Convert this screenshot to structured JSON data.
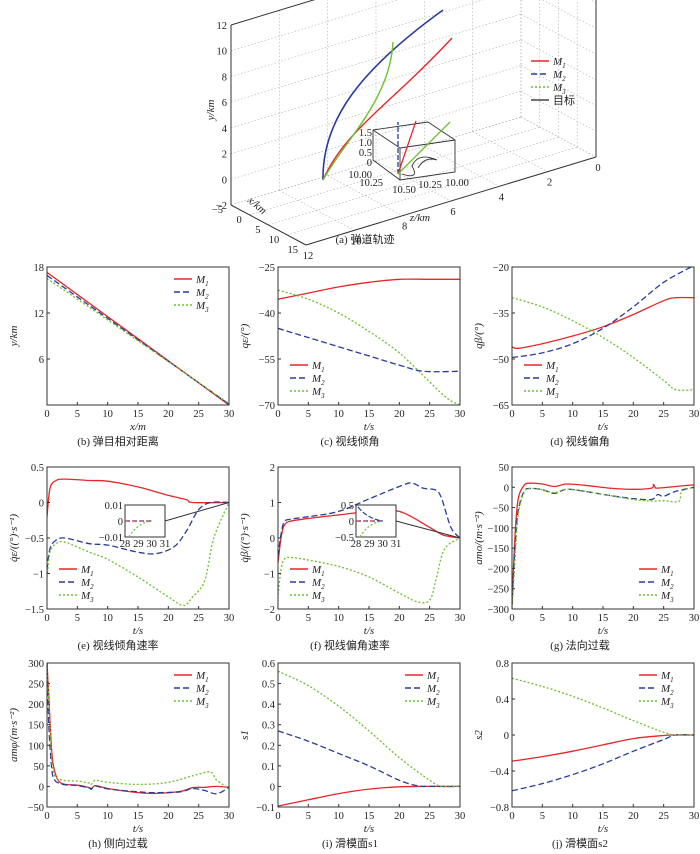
{
  "colors": {
    "M1": "#e8262a",
    "M2": "#2a3c9a",
    "M3": "#6cc02e",
    "target": "#222222"
  },
  "series_names": [
    "M1",
    "M2",
    "M3"
  ],
  "chart_data": [
    {
      "id": "a",
      "type": "line3d",
      "caption": "(a) 弹道轨迹",
      "xlabel": "x/km",
      "ylabel": "y/km",
      "zlabel": "z/km",
      "xticks": [
        "-5",
        "0",
        "5",
        "10",
        "15"
      ],
      "yticks": [
        "-2",
        "0",
        "2",
        "4",
        "6",
        "8",
        "10",
        "12"
      ],
      "zticks": [
        "12",
        "10",
        "8",
        "6",
        "4",
        "2",
        "0"
      ],
      "legend": [
        "M1",
        "M2",
        "M3",
        "目标"
      ],
      "inset": {
        "yticks": [
          "0",
          "0.5",
          "1.0",
          "1.5"
        ],
        "xticks": [
          "10.00",
          "10.25",
          "10.50"
        ],
        "zticks": [
          "10.25",
          "10.00"
        ]
      }
    },
    {
      "id": "b",
      "type": "line",
      "caption": "(b) 弹目相对距离",
      "xlabel": "x/m",
      "ylabel": "y/km",
      "xlim": [
        0,
        30
      ],
      "ylim": [
        0,
        18
      ],
      "xticks": [
        0,
        5,
        10,
        15,
        20,
        25,
        30
      ],
      "yticks": [
        6,
        12,
        18
      ],
      "legend": "top-right",
      "series": [
        {
          "name": "M1",
          "x": [
            0,
            30
          ],
          "y": [
            17.3,
            0
          ]
        },
        {
          "name": "M2",
          "x": [
            0,
            10,
            30
          ],
          "y": [
            16.9,
            11.3,
            0.1
          ]
        },
        {
          "name": "M3",
          "x": [
            0,
            10,
            30
          ],
          "y": [
            16.5,
            11.1,
            0.2
          ]
        }
      ]
    },
    {
      "id": "c",
      "type": "line",
      "caption": "(c) 视线倾角",
      "xlabel": "t/s",
      "ylabel": "qε/(°)",
      "xlim": [
        0,
        30
      ],
      "ylim": [
        -70,
        -25
      ],
      "xticks": [
        0,
        5,
        10,
        15,
        20,
        25,
        30
      ],
      "yticks": [
        -70,
        -55,
        -40,
        -25
      ],
      "legend": "bottom-left",
      "series": [
        {
          "name": "M1",
          "x": [
            0,
            5,
            10,
            15,
            20,
            25,
            30
          ],
          "y": [
            -35.5,
            -33.5,
            -31.5,
            -30,
            -29,
            -29,
            -29
          ]
        },
        {
          "name": "M2",
          "x": [
            0,
            5,
            10,
            15,
            20,
            24,
            30
          ],
          "y": [
            -45,
            -48,
            -51,
            -54,
            -57,
            -59,
            -59
          ]
        },
        {
          "name": "M3",
          "x": [
            0,
            5,
            10,
            15,
            20,
            25,
            28,
            30
          ],
          "y": [
            -32.5,
            -35.5,
            -40,
            -46,
            -53,
            -62.5,
            -68,
            -70
          ]
        }
      ]
    },
    {
      "id": "d",
      "type": "line",
      "caption": "(d) 视线偏角",
      "xlabel": "t/s",
      "ylabel": "qβ/(°)",
      "xlim": [
        0,
        30
      ],
      "ylim": [
        -65,
        -20
      ],
      "xticks": [
        0,
        5,
        10,
        15,
        20,
        25,
        30
      ],
      "yticks": [
        -65,
        -50,
        -35,
        -20
      ],
      "legend": "bottom-left",
      "series": [
        {
          "name": "M1",
          "x": [
            0,
            1,
            5,
            10,
            15,
            20,
            25,
            27,
            30
          ],
          "y": [
            -46,
            -46.5,
            -45,
            -42.5,
            -39.5,
            -35.5,
            -31,
            -30,
            -30
          ]
        },
        {
          "name": "M2",
          "x": [
            0,
            5,
            10,
            15,
            20,
            25,
            30
          ],
          "y": [
            -49.5,
            -48,
            -45,
            -40,
            -33,
            -25,
            -19.5
          ]
        },
        {
          "name": "M3",
          "x": [
            0,
            5,
            10,
            15,
            20,
            25,
            27,
            30
          ],
          "y": [
            -30,
            -33,
            -37.5,
            -43,
            -49.5,
            -57,
            -60,
            -60
          ]
        }
      ]
    },
    {
      "id": "e",
      "type": "line",
      "caption": "(e) 视线倾角速率",
      "xlabel": "t/s",
      "ylabel": "q̇ε/((°)·s⁻¹)",
      "xlim": [
        0,
        30
      ],
      "ylim": [
        -1.5,
        0.5
      ],
      "xticks": [
        0,
        5,
        10,
        15,
        20,
        25,
        30
      ],
      "yticks": [
        -1.5,
        -1.0,
        -0.5,
        0,
        0.5
      ],
      "legend": "bottom-left",
      "inset": {
        "xticks": [
          28,
          29,
          30,
          31
        ],
        "yticks": [
          -0.01,
          0,
          0.01
        ]
      },
      "series": [
        {
          "name": "M1",
          "x": [
            0,
            0.5,
            1.5,
            3,
            7,
            10,
            15,
            20,
            23,
            24,
            30
          ],
          "y": [
            -0.2,
            0.2,
            0.31,
            0.33,
            0.31,
            0.3,
            0.22,
            0.1,
            0.04,
            0,
            0
          ]
        },
        {
          "name": "M2",
          "x": [
            0,
            0.5,
            1.5,
            3,
            7,
            10,
            15,
            18,
            21,
            23,
            25,
            27,
            30
          ],
          "y": [
            -0.95,
            -0.65,
            -0.53,
            -0.5,
            -0.58,
            -0.6,
            -0.7,
            -0.72,
            -0.62,
            -0.4,
            -0.1,
            0,
            0
          ]
        },
        {
          "name": "M3",
          "x": [
            0,
            0.5,
            1.5,
            3,
            7,
            10,
            15,
            20,
            22.5,
            24,
            26,
            27.5,
            30
          ],
          "y": [
            -1.05,
            -0.7,
            -0.58,
            -0.56,
            -0.7,
            -0.8,
            -1.05,
            -1.33,
            -1.45,
            -1.33,
            -1.1,
            -0.5,
            0
          ]
        }
      ]
    },
    {
      "id": "f",
      "type": "line",
      "caption": "(f) 视线偏角速率",
      "xlabel": "t/s",
      "ylabel": "q̇β/((°)·s⁻¹)",
      "xlim": [
        0,
        30
      ],
      "ylim": [
        -2,
        2
      ],
      "xticks": [
        0,
        5,
        10,
        15,
        20,
        25,
        30
      ],
      "yticks": [
        -2,
        -1,
        0,
        1,
        2
      ],
      "legend": "bottom-left",
      "inset": {
        "xticks": [
          28,
          29,
          30,
          31
        ],
        "yticks": [
          -0.5,
          0,
          0.5
        ]
      },
      "series": [
        {
          "name": "M1",
          "x": [
            0,
            0.5,
            1,
            2,
            5,
            10,
            15,
            18,
            20,
            22,
            25,
            27,
            28,
            30
          ],
          "y": [
            -0.7,
            0,
            0.35,
            0.47,
            0.55,
            0.65,
            0.75,
            0.77,
            0.75,
            0.6,
            0.3,
            0.1,
            0.05,
            0
          ]
        },
        {
          "name": "M2",
          "x": [
            0,
            0.5,
            1,
            2,
            5,
            10,
            15,
            20,
            22,
            24,
            26,
            27,
            28.5,
            30
          ],
          "y": [
            -0.5,
            0.1,
            0.45,
            0.53,
            0.6,
            0.75,
            1.1,
            1.45,
            1.55,
            1.4,
            1.35,
            1.1,
            0.3,
            0
          ]
        },
        {
          "name": "M3",
          "x": [
            0,
            0.5,
            1,
            2,
            5,
            10,
            15,
            20,
            23,
            25,
            26,
            27,
            28,
            30
          ],
          "y": [
            -1.6,
            -0.9,
            -0.6,
            -0.55,
            -0.62,
            -0.8,
            -1.1,
            -1.55,
            -1.8,
            -1.75,
            -1.2,
            -0.5,
            -0.2,
            0
          ]
        }
      ]
    },
    {
      "id": "g",
      "type": "line",
      "caption": "(g) 法向过载",
      "xlabel": "t/s",
      "ylabel": "amo/(m·s⁻²)",
      "xlim": [
        0,
        30
      ],
      "ylim": [
        -300,
        50
      ],
      "xticks": [
        0,
        5,
        10,
        15,
        20,
        25,
        30
      ],
      "yticks": [
        -300,
        -250,
        -200,
        -150,
        -100,
        -50,
        0,
        50
      ],
      "legend": "bottom-right",
      "series": [
        {
          "name": "M1",
          "x": [
            0,
            0.5,
            1,
            2,
            3,
            5,
            7,
            9,
            12,
            16,
            20,
            23,
            23.3,
            23.6,
            24,
            27,
            30
          ],
          "y": [
            -290,
            -120,
            -30,
            5,
            10,
            8,
            2,
            8,
            5,
            -2,
            -5,
            -2,
            7,
            0,
            -2,
            2,
            6
          ]
        },
        {
          "name": "M2",
          "x": [
            0,
            0.5,
            1,
            2,
            3,
            5,
            7,
            9,
            12,
            16,
            20,
            23,
            24,
            25,
            27,
            30
          ],
          "y": [
            -290,
            -150,
            -60,
            -10,
            -3,
            -6,
            -15,
            -5,
            -10,
            -20,
            -28,
            -30,
            -18,
            -22,
            -10,
            0
          ]
        },
        {
          "name": "M3",
          "x": [
            0,
            0.5,
            1,
            2,
            3,
            5,
            7,
            9,
            12,
            16,
            20,
            23,
            25,
            27.5,
            28,
            30
          ],
          "y": [
            -300,
            -180,
            -70,
            -12,
            -3,
            -6,
            -13,
            -5,
            -10,
            -20,
            -30,
            -34,
            -33,
            -35,
            -10,
            0
          ]
        }
      ]
    },
    {
      "id": "h",
      "type": "line",
      "caption": "(h) 侧向过载",
      "xlabel": "t/s",
      "ylabel": "amφ/(m·s⁻²)",
      "xlim": [
        0,
        30
      ],
      "ylim": [
        -50,
        300
      ],
      "xticks": [
        0,
        5,
        10,
        15,
        20,
        25,
        30
      ],
      "yticks": [
        -50,
        0,
        50,
        100,
        150,
        200,
        250,
        300
      ],
      "legend": "top-right",
      "series": [
        {
          "name": "M1",
          "x": [
            0,
            0.3,
            0.8,
            1.3,
            2,
            3,
            5,
            7,
            7.3,
            8,
            10,
            15,
            18,
            22,
            24,
            26,
            28,
            30
          ],
          "y": [
            300,
            220,
            80,
            35,
            12,
            5,
            3,
            -3,
            -6,
            2,
            -5,
            -15,
            -17,
            -12,
            -3,
            -2,
            0,
            -2
          ]
        },
        {
          "name": "M2",
          "x": [
            0,
            0.3,
            0.8,
            1.3,
            2,
            3,
            5,
            7,
            7.3,
            8,
            10,
            15,
            18,
            22,
            24,
            26,
            28,
            30
          ],
          "y": [
            300,
            150,
            40,
            15,
            8,
            4,
            2,
            -4,
            -7,
            1,
            -6,
            -13,
            -15,
            -13,
            -5,
            -10,
            -18,
            -2
          ]
        },
        {
          "name": "M3",
          "x": [
            0,
            0.3,
            0.8,
            1.3,
            2,
            3,
            5,
            7,
            7.3,
            8,
            10,
            15,
            20,
            25,
            27,
            28,
            30
          ],
          "y": [
            300,
            200,
            60,
            25,
            18,
            14,
            13,
            8,
            5,
            15,
            10,
            5,
            10,
            30,
            35,
            15,
            -5
          ]
        }
      ]
    },
    {
      "id": "i",
      "type": "line",
      "caption": "(i) 滑模面s1",
      "xlabel": "t/s",
      "ylabel": "s1",
      "xlim": [
        0,
        30
      ],
      "ylim": [
        -0.1,
        0.6
      ],
      "xticks": [
        0,
        5,
        10,
        15,
        20,
        25,
        30
      ],
      "yticks": [
        -0.1,
        0,
        0.1,
        0.2,
        0.3,
        0.4,
        0.5,
        0.6
      ],
      "legend": "top-right",
      "series": [
        {
          "name": "M1",
          "x": [
            0,
            5,
            10,
            15,
            20,
            25,
            30
          ],
          "y": [
            -0.095,
            -0.065,
            -0.035,
            -0.013,
            -0.002,
            0,
            0
          ]
        },
        {
          "name": "M2",
          "x": [
            0,
            5,
            10,
            15,
            20,
            23,
            25,
            30
          ],
          "y": [
            0.27,
            0.22,
            0.16,
            0.1,
            0.03,
            0.003,
            0,
            0
          ]
        },
        {
          "name": "M3",
          "x": [
            0,
            5,
            10,
            15,
            20,
            25,
            27,
            30
          ],
          "y": [
            0.56,
            0.49,
            0.39,
            0.27,
            0.14,
            0.03,
            0,
            0
          ]
        }
      ]
    },
    {
      "id": "j",
      "type": "line",
      "caption": "(j) 滑模面s2",
      "xlabel": "t/s",
      "ylabel": "s2",
      "xlim": [
        0,
        30
      ],
      "ylim": [
        -0.8,
        0.8
      ],
      "xticks": [
        0,
        5,
        10,
        15,
        20,
        25,
        30
      ],
      "yticks": [
        -0.8,
        -0.4,
        0,
        0.4,
        0.8
      ],
      "legend": "top-right",
      "series": [
        {
          "name": "M1",
          "x": [
            0,
            5,
            10,
            15,
            20,
            25,
            27,
            30
          ],
          "y": [
            -0.29,
            -0.24,
            -0.18,
            -0.11,
            -0.04,
            -0.005,
            0,
            0
          ]
        },
        {
          "name": "M2",
          "x": [
            0,
            5,
            10,
            15,
            20,
            25,
            27,
            30
          ],
          "y": [
            -0.62,
            -0.54,
            -0.44,
            -0.32,
            -0.18,
            -0.05,
            0,
            0
          ]
        },
        {
          "name": "M3",
          "x": [
            0,
            5,
            10,
            15,
            20,
            25,
            27,
            30
          ],
          "y": [
            0.63,
            0.54,
            0.43,
            0.3,
            0.16,
            0.03,
            0,
            0
          ]
        }
      ]
    }
  ]
}
